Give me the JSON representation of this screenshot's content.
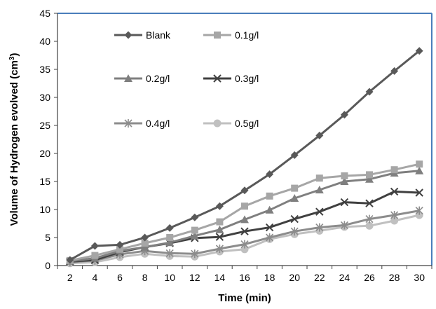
{
  "chart_data": {
    "type": "line",
    "title": "",
    "xlabel": "Time (min)",
    "ylabel": "Volume of Hydrogen evolved (cm",
    "ylabel_superscript": "3",
    "ylabel_suffix": ")",
    "x": [
      2,
      4,
      6,
      8,
      10,
      12,
      14,
      16,
      18,
      20,
      22,
      24,
      26,
      28,
      30
    ],
    "x_tick_labels": [
      "2",
      "4",
      "6",
      "8",
      "10",
      "12",
      "14",
      "16",
      "18",
      "20",
      "22",
      "24",
      "26",
      "28",
      "30"
    ],
    "y_tick_labels": [
      "0",
      "5",
      "10",
      "15",
      "20",
      "25",
      "30",
      "35",
      "40",
      "45"
    ],
    "ylim": [
      0,
      45
    ],
    "grid": false,
    "legend_position": "top-left inside plot, 2 columns",
    "series": [
      {
        "name": "Blank",
        "color": "#595959",
        "marker": "diamond",
        "values": [
          1.0,
          3.5,
          3.7,
          5.0,
          6.7,
          8.6,
          10.6,
          13.4,
          16.3,
          19.7,
          23.2,
          26.9,
          31.0,
          34.7,
          38.3
        ]
      },
      {
        "name": "0.1g/l",
        "color": "#a6a6a6",
        "marker": "square",
        "values": [
          0.9,
          1.8,
          2.9,
          4.0,
          5.0,
          6.3,
          7.8,
          10.6,
          12.4,
          13.8,
          15.6,
          16.0,
          16.2,
          17.1,
          18.1
        ]
      },
      {
        "name": "0.2g/l",
        "color": "#7f7f7f",
        "marker": "triangle",
        "values": [
          0.8,
          1.3,
          2.6,
          3.3,
          4.1,
          5.3,
          6.4,
          8.2,
          9.9,
          12.0,
          13.5,
          15.0,
          15.4,
          16.5,
          16.9
        ]
      },
      {
        "name": "0.3g/l",
        "color": "#404040",
        "marker": "x",
        "values": [
          0.7,
          1.0,
          2.4,
          3.3,
          4.0,
          4.9,
          5.1,
          6.1,
          6.8,
          8.3,
          9.6,
          11.3,
          11.1,
          13.2,
          13.0
        ]
      },
      {
        "name": "0.4g/l",
        "color": "#8c8c8c",
        "marker": "star",
        "values": [
          0.6,
          0.9,
          2.0,
          2.6,
          2.2,
          2.1,
          3.0,
          3.8,
          5.0,
          6.1,
          6.8,
          7.2,
          8.3,
          9.0,
          9.8
        ]
      },
      {
        "name": "0.5g/l",
        "color": "#c0c0c0",
        "marker": "circle",
        "values": [
          0.4,
          0.6,
          1.5,
          2.1,
          1.7,
          1.6,
          2.5,
          2.9,
          4.7,
          5.6,
          6.2,
          6.9,
          7.1,
          8.0,
          9.0
        ]
      }
    ]
  }
}
